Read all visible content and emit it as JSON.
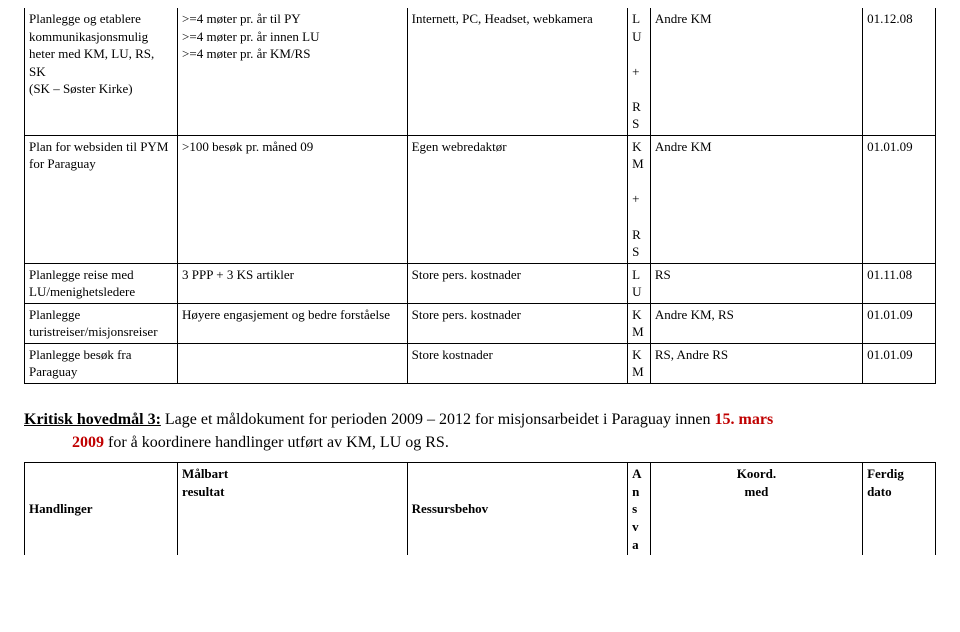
{
  "table1": {
    "cols": [
      "col-handlinger",
      "col-resultat",
      "col-ressurs",
      "col-a",
      "col-koord",
      "col-dato"
    ],
    "rows": [
      {
        "c0": "Planlegge og etablere kommunikasjonsmulig heter med KM, LU, RS, SK",
        "c0b": "(SK – Søster Kirke)",
        "c1a": ">=4 møter pr. år til PY",
        "c1b": ">=4 møter pr. år innen LU",
        "c1c": ">=4 møter pr. år KM/RS",
        "c2": "Internett, PC, Headset, webkamera",
        "c3": "L\nU\n\n+\n\nR\nS",
        "c4": "Andre KM",
        "c5": "01.12.08"
      },
      {
        "c0": "Plan for websiden til PYM for Paraguay",
        "c1": ">100 besøk pr. måned 09",
        "c2": "Egen webredaktør",
        "c3": "K\nM\n\n+\n\nR\nS",
        "c4": "Andre KM",
        "c5": "01.01.09"
      },
      {
        "c0": "Planlegge reise med LU/menighetsledere",
        "c1": "3 PPP + 3 KS artikler",
        "c2": "Store pers. kostnader",
        "c3": "L\nU",
        "c4": "RS",
        "c5": "01.11.08"
      },
      {
        "c0": "Planlegge turistreiser/misjonsreiser",
        "c1": "Høyere engasjement og bedre forståelse",
        "c2": "Store pers. kostnader",
        "c3": "K\nM",
        "c4": "Andre KM, RS",
        "c5": "01.01.09"
      },
      {
        "c0": "Planlegge besøk fra Paraguay",
        "c1": "",
        "c2": "Store kostnader",
        "c3": "K\nM",
        "c4": "RS, Andre RS",
        "c5": "01.01.09"
      }
    ]
  },
  "heading": {
    "title": "Kritisk hovedmål 3:",
    "line1_rest": " Lage et måldokument for perioden 2009 – 2012 for misjonsarbeidet i Paraguay innen ",
    "red1": "15. mars",
    "line2_red": "2009",
    "line2_rest": " for å koordinere handlinger utført av KM, LU og RS."
  },
  "table2": {
    "head": {
      "c0": "Handlinger",
      "c1a": "Målbart",
      "c1b": "resultat",
      "c2": "Ressursbehov",
      "c3": "A\nn\ns\nv\na",
      "c4a": "Koord.",
      "c4b": "med",
      "c5a": "Ferdig",
      "c5b": "dato"
    }
  }
}
